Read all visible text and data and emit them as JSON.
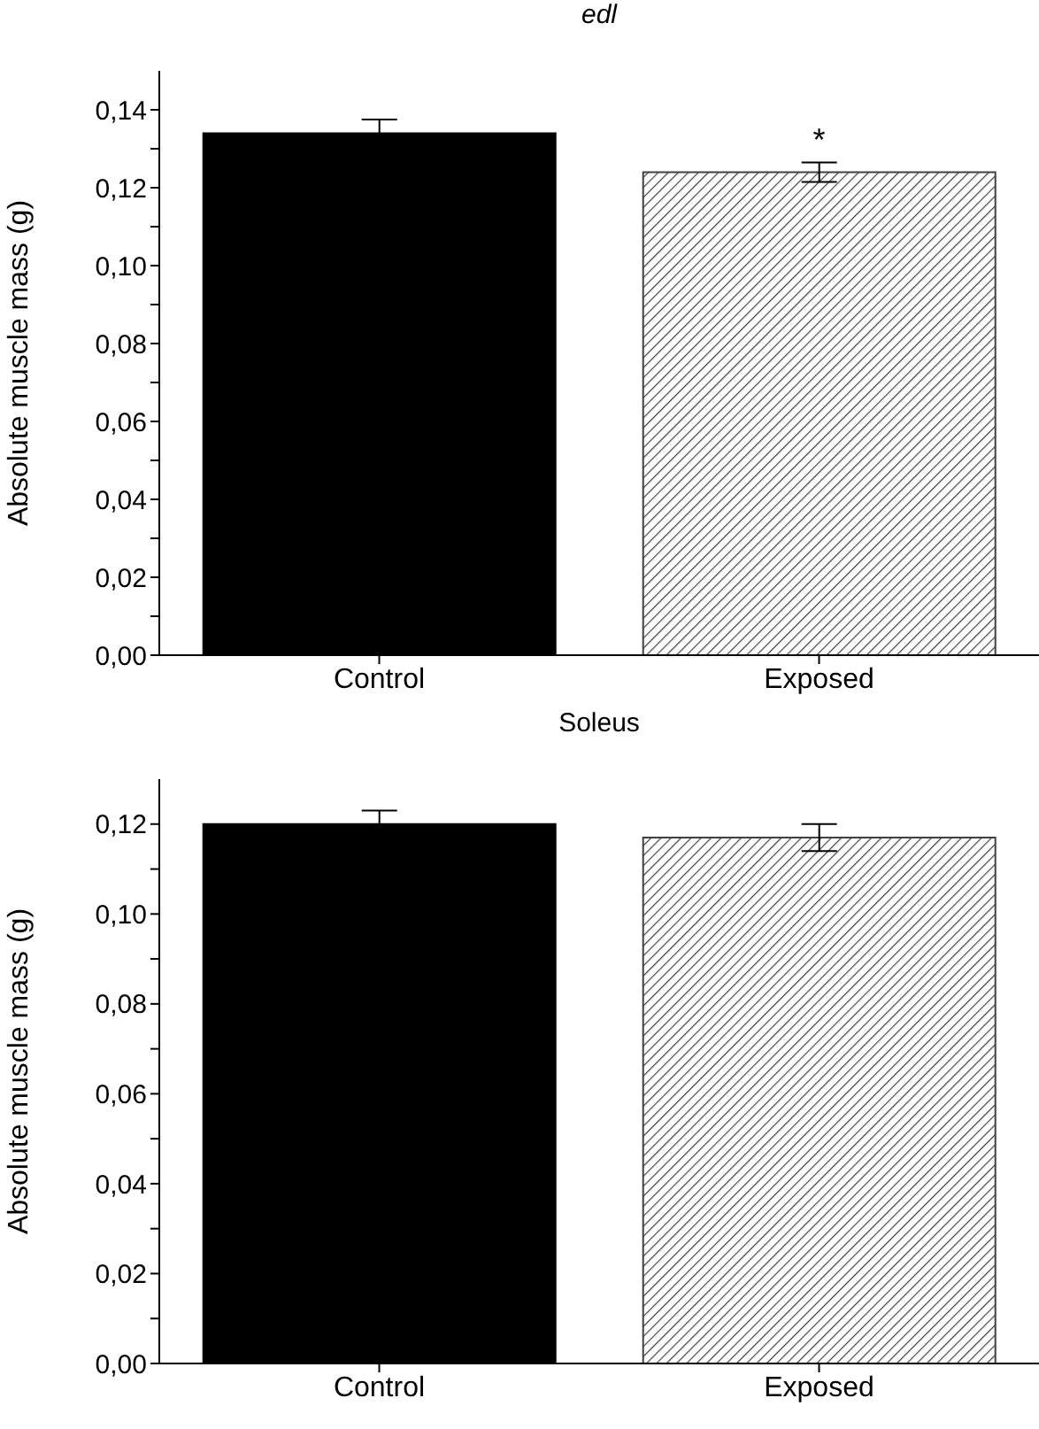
{
  "chart_data": [
    {
      "type": "bar",
      "title": "edl",
      "ylabel": "Absolute muscle mass (g)",
      "categories": [
        "Control",
        "Exposed"
      ],
      "values": [
        0.134,
        0.124
      ],
      "errors": [
        0.0035,
        0.0025
      ],
      "colors": [
        "#000000",
        "#404040"
      ],
      "ylim": [
        0,
        0.15
      ],
      "yticks": [
        {
          "value": 0,
          "label": "0,00"
        },
        {
          "value": 0.01,
          "label": null
        },
        {
          "value": 0.02,
          "label": "0,02"
        },
        {
          "value": 0.03,
          "label": null
        },
        {
          "value": 0.04,
          "label": "0,04"
        },
        {
          "value": 0.05,
          "label": null
        },
        {
          "value": 0.06,
          "label": "0,06"
        },
        {
          "value": 0.07,
          "label": null
        },
        {
          "value": 0.08,
          "label": "0,08"
        },
        {
          "value": 0.09,
          "label": null
        },
        {
          "value": 0.1,
          "label": "0,10"
        },
        {
          "value": 0.11,
          "label": null
        },
        {
          "value": 0.12,
          "label": "0,12"
        },
        {
          "value": 0.13,
          "label": null
        },
        {
          "value": 0.14,
          "label": "0,14"
        }
      ],
      "annotations": [
        "*"
      ]
    },
    {
      "type": "bar",
      "title": "Soleus",
      "ylabel": "Absolute muscle mass (g)",
      "categories": [
        "Control",
        "Exposed"
      ],
      "values": [
        0.12,
        0.117
      ],
      "errors": [
        0.003,
        0.003
      ],
      "colors": [
        "#000000",
        "#404040"
      ],
      "ylim": [
        0,
        0.13
      ],
      "yticks": [
        {
          "value": 0,
          "label": "0,00"
        },
        {
          "value": 0.01,
          "label": null
        },
        {
          "value": 0.02,
          "label": "0,02"
        },
        {
          "value": 0.03,
          "label": null
        },
        {
          "value": 0.04,
          "label": "0,04"
        },
        {
          "value": 0.05,
          "label": null
        },
        {
          "value": 0.06,
          "label": "0,06"
        },
        {
          "value": 0.07,
          "label": null
        },
        {
          "value": 0.08,
          "label": "0,08"
        },
        {
          "value": 0.09,
          "label": null
        },
        {
          "value": 0.1,
          "label": "0,10"
        },
        {
          "value": 0.11,
          "label": null
        },
        {
          "value": 0.12,
          "label": "0,12"
        }
      ]
    }
  ]
}
